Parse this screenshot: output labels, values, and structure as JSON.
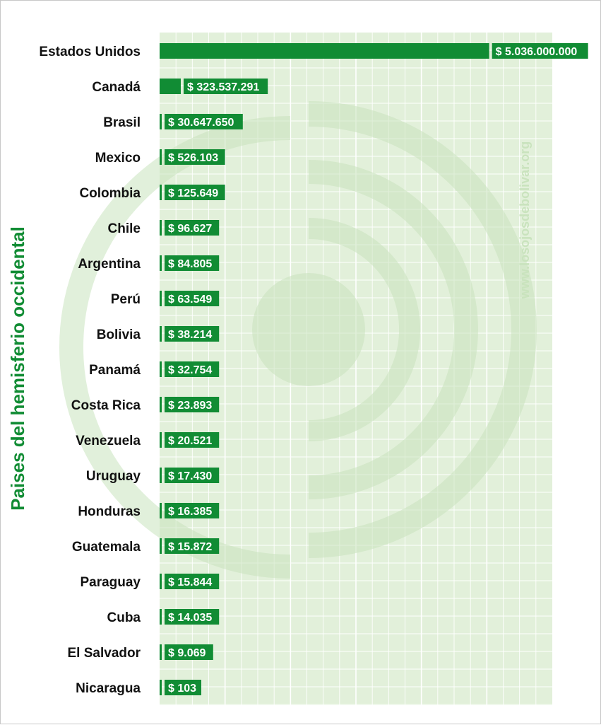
{
  "colors": {
    "bar": "#118c34",
    "plot_bg": "#e2f0da",
    "grid": "#ffffff",
    "axis_label": "#118c34",
    "watermark": "#c9e3bd"
  },
  "watermark": {
    "text": "www.losojosdebolivar.org"
  },
  "chart_data": {
    "type": "bar",
    "orientation": "horizontal",
    "ylabel": "Paises del hemisferio occidental",
    "xlabel": "",
    "xlim": [
      0,
      6000000000
    ],
    "grid": true,
    "categories": [
      "Estados Unidos",
      "Canadá",
      "Brasil",
      "Mexico",
      "Colombia",
      "Chile",
      "Argentina",
      "Perú",
      "Bolivia",
      "Panamá",
      "Costa Rica",
      "Venezuela",
      "Uruguay",
      "Honduras",
      "Guatemala",
      "Paraguay",
      "Cuba",
      "El Salvador",
      "Nicaragua"
    ],
    "values": [
      5036000000,
      323537291,
      30647650,
      526103,
      125649,
      96627,
      84805,
      63549,
      38214,
      32754,
      23893,
      20521,
      17430,
      16385,
      15872,
      15844,
      14035,
      9069,
      103
    ],
    "data_labels": [
      "$ 5.036.000.000",
      "$ 323.537.291",
      "$ 30.647.650",
      "$ 526.103",
      "$ 125.649",
      "$ 96.627",
      "$ 84.805",
      "$ 63.549",
      "$ 38.214",
      "$ 32.754",
      "$ 23.893",
      "$ 20.521",
      "$ 17.430",
      "$ 16.385",
      "$ 15.872",
      "$ 15.844",
      "$ 14.035",
      "$ 9.069",
      "$ 103"
    ]
  }
}
